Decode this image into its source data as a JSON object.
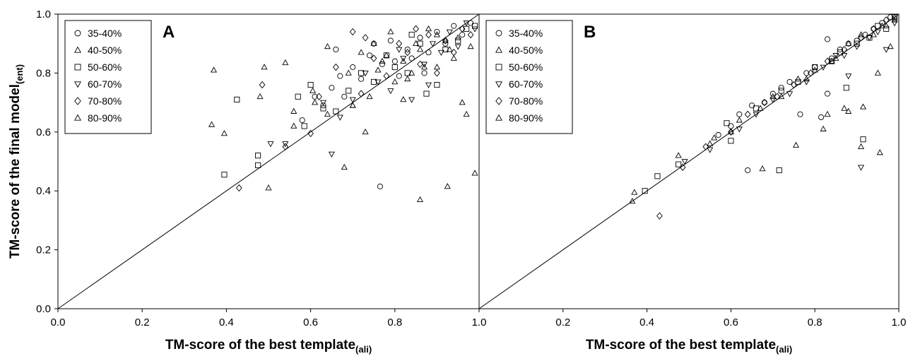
{
  "figure": {
    "y_axis_label": "TM-score of the final model",
    "y_axis_label_sub": "(ent)"
  },
  "chart_data": [
    {
      "type": "scatter",
      "panel_label": "A",
      "xlabel": "TM-score of the best template",
      "xlabel_sub": "(ali)",
      "xlim": [
        0.0,
        1.0
      ],
      "ylim": [
        0.0,
        1.0
      ],
      "x_ticks": [
        "0.0",
        "0.2",
        "0.4",
        "0.6",
        "0.8",
        "1.0"
      ],
      "y_ticks": [
        "0.0",
        "0.2",
        "0.4",
        "0.6",
        "0.8",
        "1.0"
      ],
      "reference_line": {
        "from": [
          0,
          0
        ],
        "to": [
          1,
          1
        ]
      },
      "legend_position": "top-left",
      "series": [
        {
          "name": "35-40%",
          "marker": "circle",
          "points": [
            [
              0.58,
              0.64
            ],
            [
              0.61,
              0.72
            ],
            [
              0.63,
              0.69
            ],
            [
              0.65,
              0.75
            ],
            [
              0.66,
              0.88
            ],
            [
              0.67,
              0.79
            ],
            [
              0.7,
              0.82
            ],
            [
              0.72,
              0.78
            ],
            [
              0.74,
              0.86
            ],
            [
              0.75,
              0.9
            ],
            [
              0.765,
              0.415
            ],
            [
              0.77,
              0.83
            ],
            [
              0.79,
              0.91
            ],
            [
              0.81,
              0.79
            ],
            [
              0.83,
              0.88
            ],
            [
              0.84,
              0.85
            ],
            [
              0.86,
              0.92
            ],
            [
              0.88,
              0.87
            ],
            [
              0.9,
              0.94
            ],
            [
              0.92,
              0.9
            ],
            [
              0.94,
              0.96
            ],
            [
              0.96,
              0.93
            ],
            [
              0.98,
              0.97
            ],
            [
              0.68,
              0.72
            ],
            [
              0.8,
              0.84
            ],
            [
              0.87,
              0.8
            ]
          ]
        },
        {
          "name": "40-50%",
          "marker": "triangle-up",
          "points": [
            [
              0.5,
              0.41
            ],
            [
              0.56,
              0.62
            ],
            [
              0.61,
              0.7
            ],
            [
              0.64,
              0.66
            ],
            [
              0.68,
              0.48
            ],
            [
              0.7,
              0.69
            ],
            [
              0.73,
              0.6
            ],
            [
              0.76,
              0.81
            ],
            [
              0.78,
              0.86
            ],
            [
              0.8,
              0.77
            ],
            [
              0.82,
              0.84
            ],
            [
              0.85,
              0.9
            ],
            [
              0.87,
              0.82
            ],
            [
              0.9,
              0.93
            ],
            [
              0.93,
              0.88
            ],
            [
              0.95,
              0.92
            ],
            [
              0.97,
              0.66
            ],
            [
              0.99,
              0.46
            ],
            [
              0.86,
              0.37
            ],
            [
              0.925,
              0.415
            ],
            [
              0.74,
              0.72
            ],
            [
              0.83,
              0.78
            ]
          ]
        },
        {
          "name": "50-60%",
          "marker": "square",
          "points": [
            [
              0.395,
              0.455
            ],
            [
              0.425,
              0.71
            ],
            [
              0.475,
              0.52
            ],
            [
              0.475,
              0.487
            ],
            [
              0.57,
              0.72
            ],
            [
              0.585,
              0.62
            ],
            [
              0.6,
              0.76
            ],
            [
              0.63,
              0.68
            ],
            [
              0.66,
              0.67
            ],
            [
              0.69,
              0.74
            ],
            [
              0.72,
              0.8
            ],
            [
              0.75,
              0.77
            ],
            [
              0.78,
              0.86
            ],
            [
              0.8,
              0.82
            ],
            [
              0.83,
              0.8
            ],
            [
              0.86,
              0.9
            ],
            [
              0.875,
              0.73
            ],
            [
              0.9,
              0.76
            ],
            [
              0.92,
              0.88
            ],
            [
              0.95,
              0.91
            ],
            [
              0.97,
              0.95
            ],
            [
              0.99,
              0.96
            ],
            [
              0.84,
              0.93
            ]
          ]
        },
        {
          "name": "60-70%",
          "marker": "triangle-down",
          "points": [
            [
              0.505,
              0.56
            ],
            [
              0.54,
              0.56
            ],
            [
              0.63,
              0.7
            ],
            [
              0.65,
              0.525
            ],
            [
              0.67,
              0.65
            ],
            [
              0.7,
              0.71
            ],
            [
              0.73,
              0.8
            ],
            [
              0.76,
              0.77
            ],
            [
              0.79,
              0.74
            ],
            [
              0.82,
              0.85
            ],
            [
              0.84,
              0.71
            ],
            [
              0.87,
              0.83
            ],
            [
              0.89,
              0.9
            ],
            [
              0.91,
              0.87
            ],
            [
              0.93,
              0.94
            ],
            [
              0.95,
              0.89
            ],
            [
              0.97,
              0.97
            ],
            [
              0.99,
              0.95
            ],
            [
              0.81,
              0.88
            ],
            [
              0.88,
              0.76
            ]
          ]
        },
        {
          "name": "70-80%",
          "marker": "diamond",
          "points": [
            [
              0.43,
              0.41
            ],
            [
              0.485,
              0.76
            ],
            [
              0.54,
              0.55
            ],
            [
              0.6,
              0.595
            ],
            [
              0.62,
              0.72
            ],
            [
              0.66,
              0.82
            ],
            [
              0.7,
              0.94
            ],
            [
              0.72,
              0.73
            ],
            [
              0.75,
              0.85
            ],
            [
              0.78,
              0.79
            ],
            [
              0.81,
              0.9
            ],
            [
              0.83,
              0.87
            ],
            [
              0.86,
              0.83
            ],
            [
              0.88,
              0.93
            ],
            [
              0.9,
              0.8
            ],
            [
              0.92,
              0.91
            ],
            [
              0.94,
              0.87
            ],
            [
              0.96,
              0.95
            ],
            [
              0.98,
              0.93
            ],
            [
              0.73,
              0.92
            ],
            [
              0.85,
              0.95
            ]
          ]
        },
        {
          "name": "80-90%",
          "marker": "triangle-up",
          "points": [
            [
              0.365,
              0.625
            ],
            [
              0.37,
              0.81
            ],
            [
              0.395,
              0.595
            ],
            [
              0.48,
              0.72
            ],
            [
              0.49,
              0.82
            ],
            [
              0.54,
              0.835
            ],
            [
              0.56,
              0.67
            ],
            [
              0.605,
              0.74
            ],
            [
              0.64,
              0.89
            ],
            [
              0.69,
              0.8
            ],
            [
              0.72,
              0.87
            ],
            [
              0.75,
              0.9
            ],
            [
              0.77,
              0.84
            ],
            [
              0.79,
              0.94
            ],
            [
              0.82,
              0.71
            ],
            [
              0.84,
              0.8
            ],
            [
              0.86,
              0.88
            ],
            [
              0.88,
              0.95
            ],
            [
              0.9,
              0.82
            ],
            [
              0.92,
              0.91
            ],
            [
              0.94,
              0.85
            ],
            [
              0.96,
              0.7
            ],
            [
              0.98,
              0.89
            ],
            [
              0.7,
              0.69
            ]
          ]
        }
      ]
    },
    {
      "type": "scatter",
      "panel_label": "B",
      "xlabel": "TM-score of the best template",
      "xlabel_sub": "(ali)",
      "xlim": [
        0.0,
        1.0
      ],
      "ylim": [
        0.0,
        1.0
      ],
      "x_ticks": [
        "",
        "0.2",
        "0.4",
        "0.6",
        "0.8",
        "1.0"
      ],
      "y_ticks": [],
      "reference_line": {
        "from": [
          0,
          0
        ],
        "to": [
          1,
          1
        ]
      },
      "legend_position": "top-left",
      "series": [
        {
          "name": "35-40%",
          "marker": "circle",
          "points": [
            [
              0.57,
              0.59
            ],
            [
              0.6,
              0.62
            ],
            [
              0.62,
              0.66
            ],
            [
              0.64,
              0.47
            ],
            [
              0.65,
              0.69
            ],
            [
              0.68,
              0.7
            ],
            [
              0.7,
              0.73
            ],
            [
              0.72,
              0.75
            ],
            [
              0.74,
              0.77
            ],
            [
              0.765,
              0.66
            ],
            [
              0.78,
              0.8
            ],
            [
              0.8,
              0.82
            ],
            [
              0.815,
              0.65
            ],
            [
              0.83,
              0.73
            ],
            [
              0.84,
              0.85
            ],
            [
              0.86,
              0.88
            ],
            [
              0.88,
              0.9
            ],
            [
              0.9,
              0.91
            ],
            [
              0.92,
              0.93
            ],
            [
              0.94,
              0.95
            ],
            [
              0.96,
              0.97
            ],
            [
              0.98,
              0.99
            ],
            [
              0.83,
              0.915
            ]
          ]
        },
        {
          "name": "40-50%",
          "marker": "triangle-up",
          "points": [
            [
              0.365,
              0.365
            ],
            [
              0.37,
              0.395
            ],
            [
              0.475,
              0.52
            ],
            [
              0.56,
              0.58
            ],
            [
              0.62,
              0.64
            ],
            [
              0.675,
              0.475
            ],
            [
              0.7,
              0.72
            ],
            [
              0.755,
              0.555
            ],
            [
              0.78,
              0.78
            ],
            [
              0.82,
              0.61
            ],
            [
              0.83,
              0.66
            ],
            [
              0.85,
              0.85
            ],
            [
              0.87,
              0.68
            ],
            [
              0.88,
              0.67
            ],
            [
              0.91,
              0.55
            ],
            [
              0.915,
              0.685
            ],
            [
              0.95,
              0.8
            ],
            [
              0.955,
              0.53
            ],
            [
              0.97,
              0.96
            ],
            [
              0.99,
              0.98
            ]
          ]
        },
        {
          "name": "50-60%",
          "marker": "square",
          "points": [
            [
              0.395,
              0.4
            ],
            [
              0.425,
              0.45
            ],
            [
              0.475,
              0.49
            ],
            [
              0.59,
              0.63
            ],
            [
              0.6,
              0.57
            ],
            [
              0.66,
              0.68
            ],
            [
              0.715,
              0.47
            ],
            [
              0.72,
              0.74
            ],
            [
              0.76,
              0.77
            ],
            [
              0.8,
              0.82
            ],
            [
              0.84,
              0.84
            ],
            [
              0.86,
              0.87
            ],
            [
              0.875,
              0.75
            ],
            [
              0.9,
              0.9
            ],
            [
              0.915,
              0.575
            ],
            [
              0.93,
              0.92
            ],
            [
              0.95,
              0.96
            ],
            [
              0.97,
              0.95
            ],
            [
              0.99,
              0.99
            ]
          ]
        },
        {
          "name": "60-70%",
          "marker": "triangle-down",
          "points": [
            [
              0.49,
              0.5
            ],
            [
              0.55,
              0.54
            ],
            [
              0.62,
              0.61
            ],
            [
              0.66,
              0.66
            ],
            [
              0.7,
              0.71
            ],
            [
              0.74,
              0.73
            ],
            [
              0.78,
              0.77
            ],
            [
              0.82,
              0.82
            ],
            [
              0.85,
              0.86
            ],
            [
              0.87,
              0.86
            ],
            [
              0.88,
              0.79
            ],
            [
              0.9,
              0.89
            ],
            [
              0.91,
              0.48
            ],
            [
              0.93,
              0.92
            ],
            [
              0.95,
              0.94
            ],
            [
              0.97,
              0.88
            ],
            [
              0.99,
              0.97
            ]
          ]
        },
        {
          "name": "70-80%",
          "marker": "diamond",
          "points": [
            [
              0.43,
              0.315
            ],
            [
              0.485,
              0.48
            ],
            [
              0.54,
              0.55
            ],
            [
              0.6,
              0.6
            ],
            [
              0.64,
              0.66
            ],
            [
              0.68,
              0.7
            ],
            [
              0.71,
              0.72
            ],
            [
              0.75,
              0.76
            ],
            [
              0.79,
              0.8
            ],
            [
              0.83,
              0.84
            ],
            [
              0.87,
              0.88
            ],
            [
              0.91,
              0.92
            ],
            [
              0.94,
              0.95
            ],
            [
              0.97,
              0.98
            ]
          ]
        },
        {
          "name": "80-90%",
          "marker": "triangle-up",
          "points": [
            [
              0.55,
              0.56
            ],
            [
              0.6,
              0.6
            ],
            [
              0.67,
              0.68
            ],
            [
              0.72,
              0.72
            ],
            [
              0.76,
              0.78
            ],
            [
              0.8,
              0.81
            ],
            [
              0.84,
              0.84
            ],
            [
              0.88,
              0.9
            ],
            [
              0.91,
              0.93
            ],
            [
              0.94,
              0.93
            ],
            [
              0.96,
              0.96
            ],
            [
              0.98,
              0.89
            ],
            [
              0.99,
              0.99
            ]
          ]
        }
      ]
    }
  ]
}
